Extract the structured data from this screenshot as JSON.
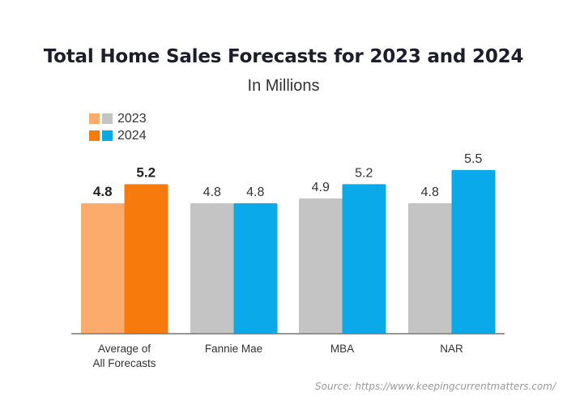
{
  "chart_data": {
    "type": "bar",
    "title": "Total Home Sales Forecasts for 2023 and 2024",
    "subtitle": "In Millions",
    "xlabel": "",
    "ylabel": "",
    "ylim": [
      2.05,
      5.8
    ],
    "grid": false,
    "legend_position": "top-left",
    "categories": [
      "Average of\nAll Forecasts",
      "Fannie Mae",
      "MBA",
      "NAR"
    ],
    "series": [
      {
        "name": "2023",
        "values": [
          4.8,
          4.8,
          4.9,
          4.8
        ],
        "colors": [
          "#fbab6b",
          "#c4c4c4",
          "#c4c4c4",
          "#c4c4c4"
        ]
      },
      {
        "name": "2024",
        "values": [
          5.2,
          4.8,
          5.2,
          5.5
        ],
        "colors": [
          "#f77a0c",
          "#0aa9ea",
          "#0aa9ea",
          "#0aa9ea"
        ]
      }
    ],
    "data_labels": [
      [
        "4.8",
        "4.8",
        "4.9",
        "4.8"
      ],
      [
        "5.2",
        "4.8",
        "5.2",
        "5.5"
      ]
    ],
    "highlight_category_bold_labels": [
      true,
      false,
      false,
      false
    ],
    "legend": [
      {
        "label": "2023",
        "colors": [
          "#fbab6b",
          "#c4c4c4"
        ]
      },
      {
        "label": "2024",
        "colors": [
          "#f77a0c",
          "#0aa9ea"
        ]
      }
    ]
  },
  "source": "Source: https://www.keepingcurrentmatters.com/"
}
